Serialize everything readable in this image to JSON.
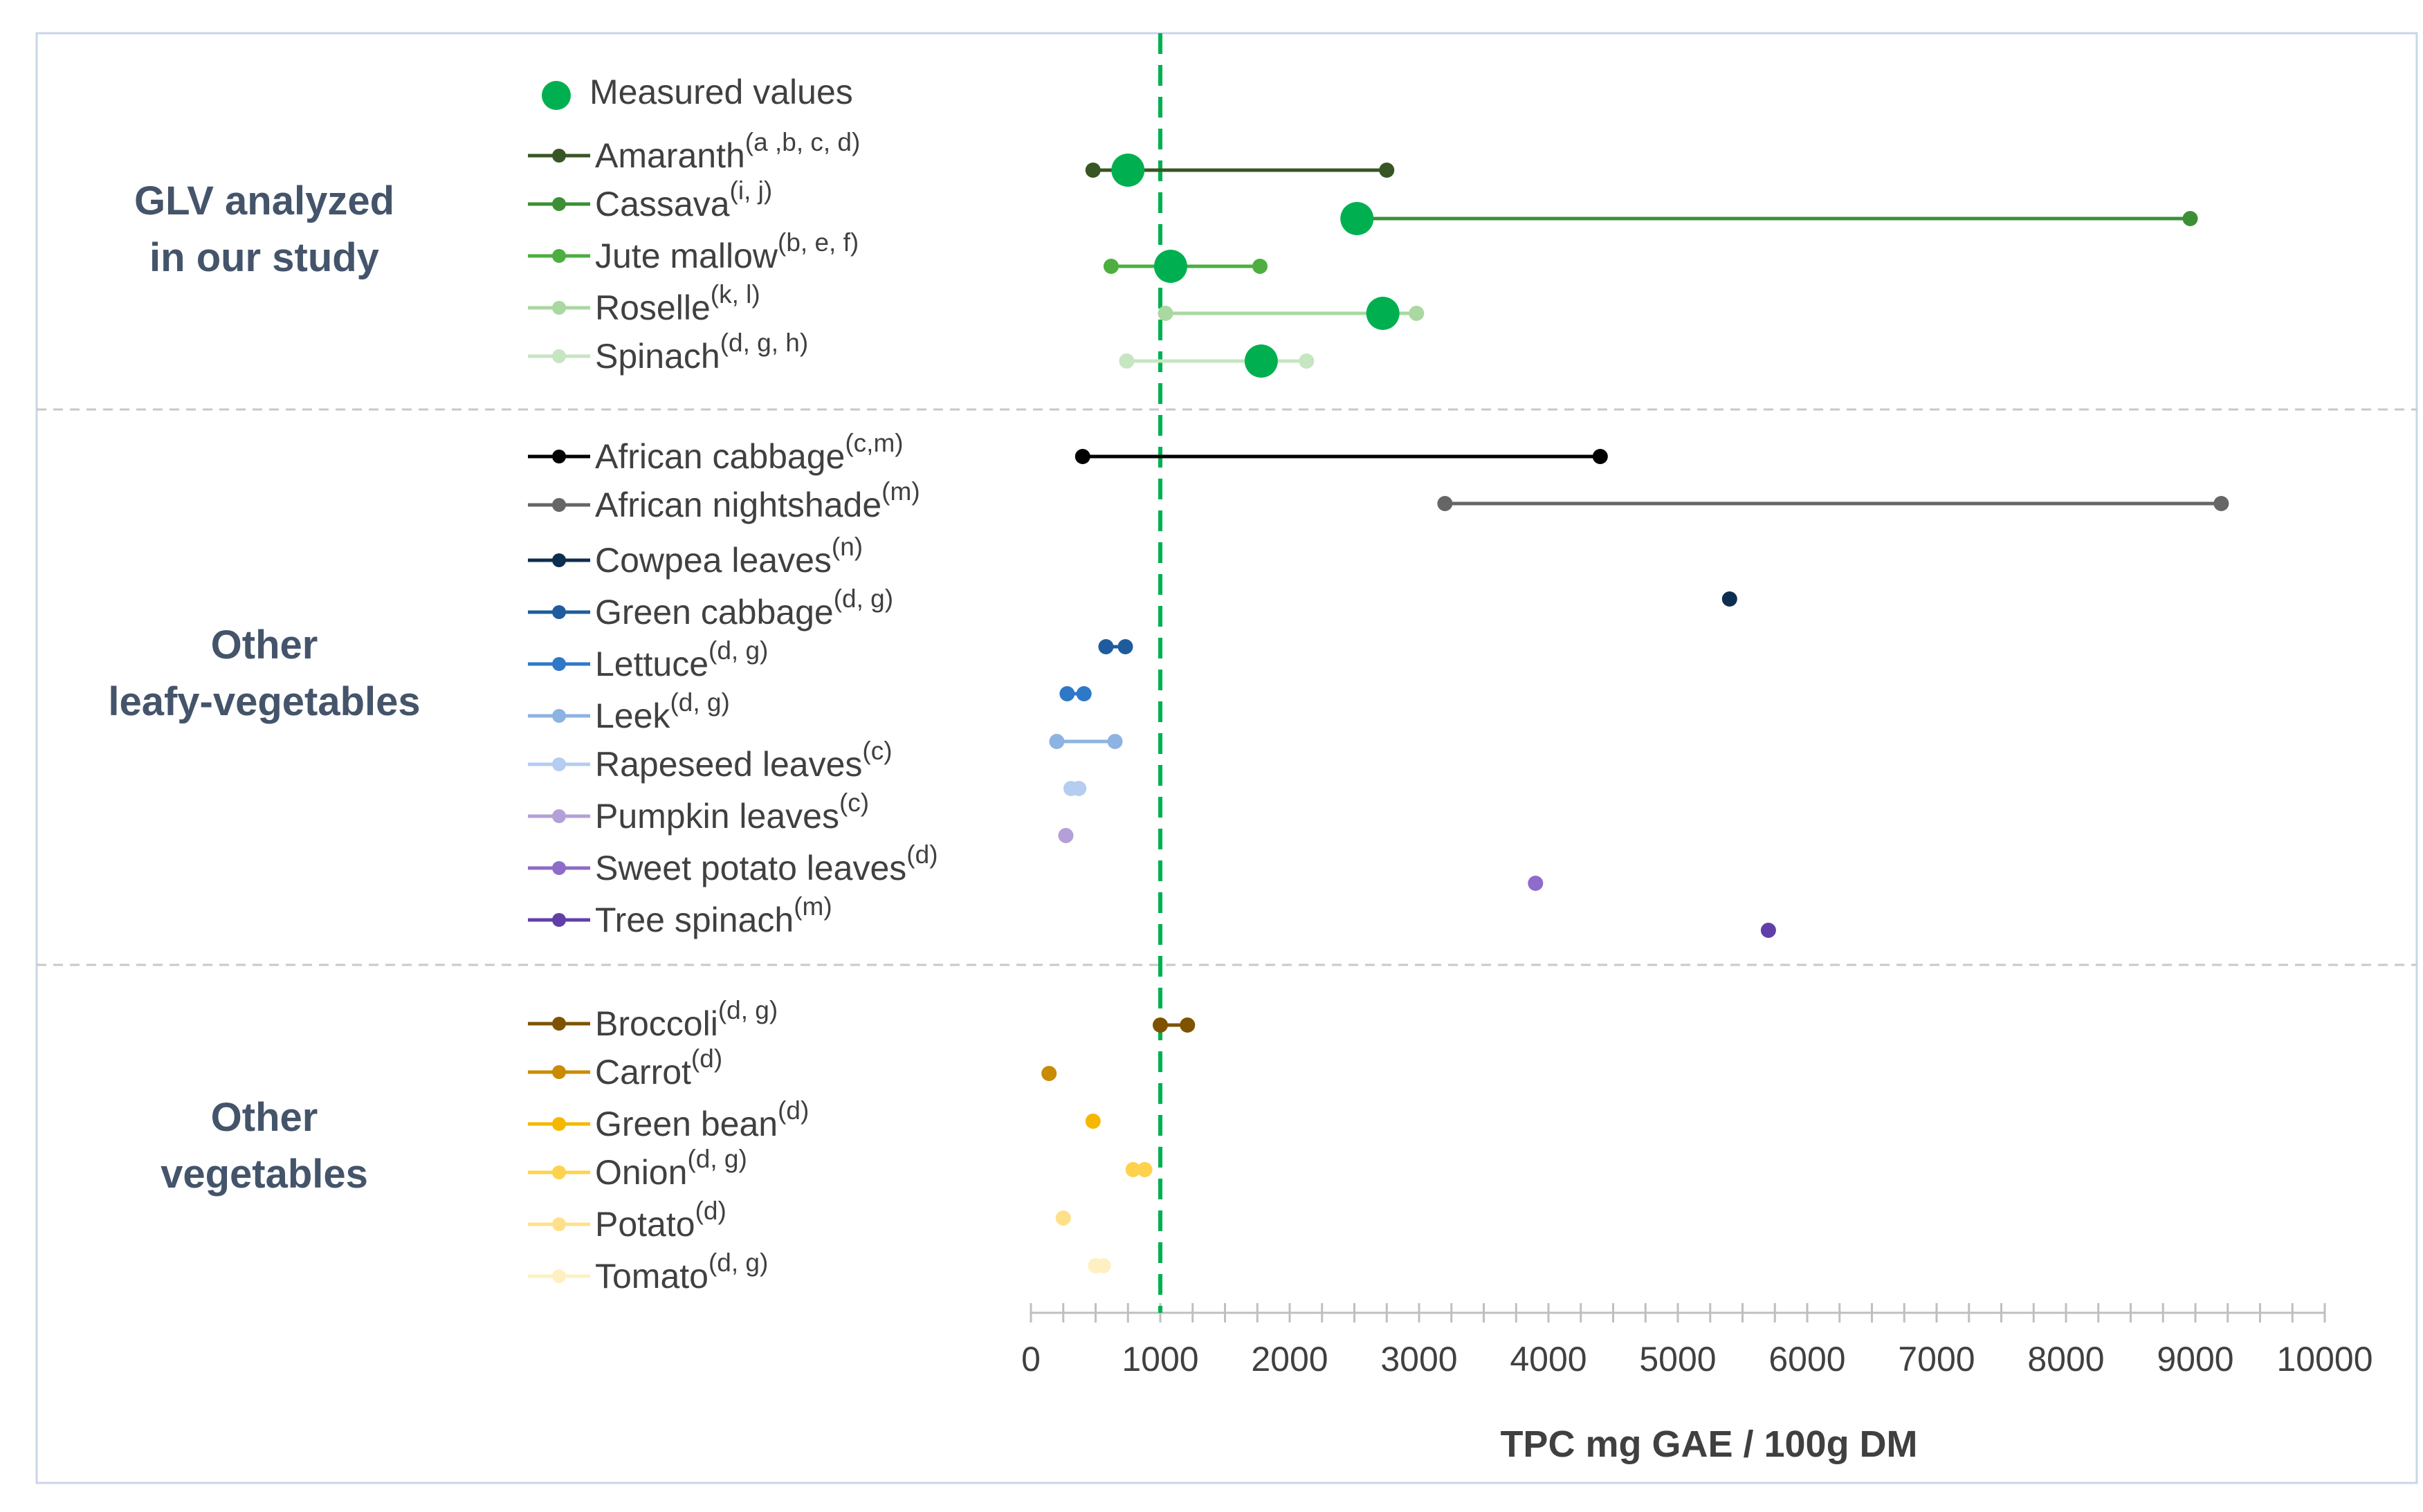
{
  "chart_data": {
    "type": "scatter",
    "subtype": "range-dot-plot",
    "xlabel": "TPC mg GAE / 100g DM",
    "xlim": [
      0,
      10000
    ],
    "xticks": [
      0,
      1000,
      2000,
      3000,
      4000,
      5000,
      6000,
      7000,
      8000,
      9000,
      10000
    ],
    "reference_line": {
      "x": 1000,
      "style": "dashed",
      "color": "#00b050"
    },
    "measured_legend": {
      "label": "Measured values",
      "color": "#00b050"
    },
    "groups": [
      {
        "name": "GLV analyzed in our study",
        "label_lines": [
          "GLV analyzed",
          "in our study"
        ],
        "series": [
          {
            "name": "Amaranth",
            "ref": "(a ,b, c, d)",
            "color": "#375623",
            "range": [
              480,
              2750
            ],
            "measured": 750
          },
          {
            "name": "Cassava",
            "ref": "(i, j)",
            "color": "#3d8f35",
            "range": [
              2520,
              8960
            ],
            "measured": 2520
          },
          {
            "name": "Jute mallow",
            "ref": "(b, e, f)",
            "color": "#4caf3f",
            "range": [
              620,
              1770
            ],
            "measured": 1080
          },
          {
            "name": "Roselle",
            "ref": "(k, l)",
            "color": "#a9d8a0",
            "range": [
              1040,
              2980
            ],
            "measured": 2720
          },
          {
            "name": "Spinach",
            "ref": "(d, g, h)",
            "color": "#c5e6c0",
            "range": [
              740,
              2130
            ],
            "measured": 1780
          }
        ]
      },
      {
        "name": "Other leafy-vegetables",
        "label_lines": [
          "Other",
          "leafy-vegetables"
        ],
        "series": [
          {
            "name": "African cabbage",
            "ref": "(c,m)",
            "color": "#000000",
            "range": [
              400,
              4400
            ]
          },
          {
            "name": "African nightshade",
            "ref": "(m)",
            "color": "#666666",
            "range": [
              3200,
              9200
            ]
          },
          {
            "name": "Cowpea leaves",
            "ref": "(n)",
            "color": "#0e2e50",
            "range": [
              5400,
              5400
            ]
          },
          {
            "name": "Green cabbage",
            "ref": "(d, g)",
            "color": "#1f5c9e",
            "range": [
              580,
              730
            ]
          },
          {
            "name": "Lettuce",
            "ref": "(d, g)",
            "color": "#2e78c7",
            "range": [
              280,
              410
            ]
          },
          {
            "name": "Leek",
            "ref": "(d, g)",
            "color": "#8db3e2",
            "range": [
              200,
              650
            ]
          },
          {
            "name": "Rapeseed leaves",
            "ref": "(c)",
            "color": "#b4cdf0",
            "range": [
              310,
              370
            ]
          },
          {
            "name": "Pumpkin leaves",
            "ref": "(c)",
            "color": "#b4a0d8",
            "range": [
              270,
              270
            ]
          },
          {
            "name": "Sweet potato leaves",
            "ref": "(d)",
            "color": "#8e6cc9",
            "range": [
              3900,
              3900
            ]
          },
          {
            "name": "Tree spinach",
            "ref": "(m)",
            "color": "#6040a8",
            "range": [
              5700,
              5700
            ]
          }
        ]
      },
      {
        "name": "Other vegetables",
        "label_lines": [
          "Other",
          "vegetables"
        ],
        "series": [
          {
            "name": "Broccoli",
            "ref": "(d, g)",
            "color": "#7f5200",
            "range": [
              1000,
              1210
            ]
          },
          {
            "name": "Carrot",
            "ref": "(d)",
            "color": "#c98b00",
            "range": [
              140,
              140
            ]
          },
          {
            "name": "Green bean",
            "ref": "(d)",
            "color": "#f5b800",
            "range": [
              480,
              480
            ]
          },
          {
            "name": "Onion",
            "ref": "(d, g)",
            "color": "#ffd24d",
            "range": [
              790,
              880
            ]
          },
          {
            "name": "Potato",
            "ref": "(d)",
            "color": "#ffe08a",
            "range": [
              250,
              250
            ]
          },
          {
            "name": "Tomato",
            "ref": "(d, g)",
            "color": "#fff0c2",
            "range": [
              500,
              560
            ]
          }
        ]
      }
    ]
  }
}
